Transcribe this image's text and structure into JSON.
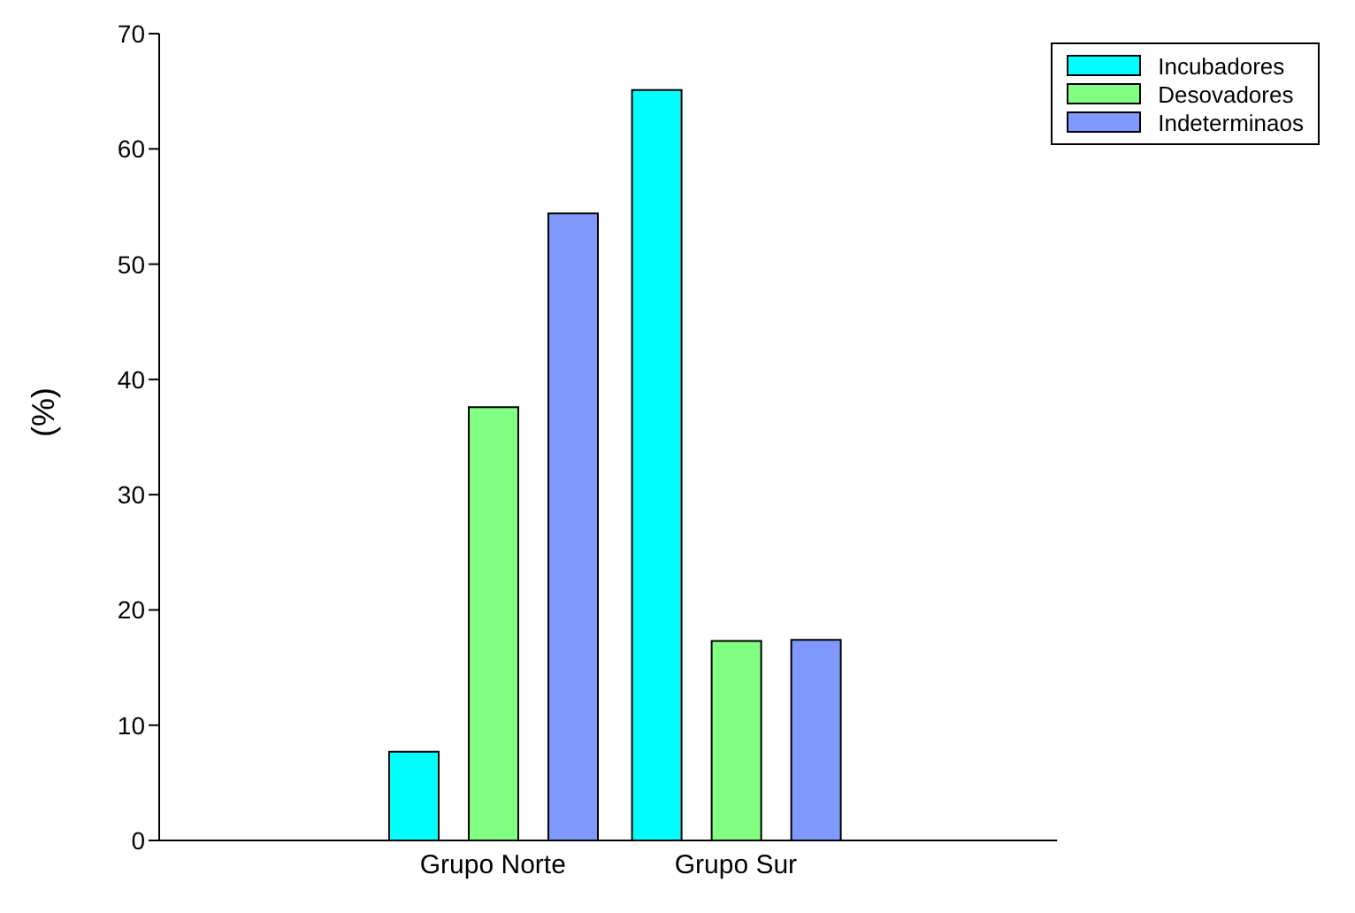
{
  "chart_data": {
    "type": "bar",
    "ylabel": "(%)",
    "categories": [
      "Grupo Norte",
      "Grupo Sur"
    ],
    "series": [
      {
        "name": "Incubadores",
        "color": "#00ffff",
        "values": [
          7.7,
          65.1
        ]
      },
      {
        "name": "Desovadores",
        "color": "#80ff80",
        "values": [
          37.6,
          17.3
        ]
      },
      {
        "name": "Indeterminaos",
        "color": "#8099ff",
        "values": [
          54.4,
          17.4
        ]
      }
    ],
    "ylim": [
      0,
      70
    ],
    "yticks": [
      0,
      10,
      20,
      30,
      40,
      50,
      60,
      70
    ],
    "grid": false,
    "legend": "top right"
  }
}
